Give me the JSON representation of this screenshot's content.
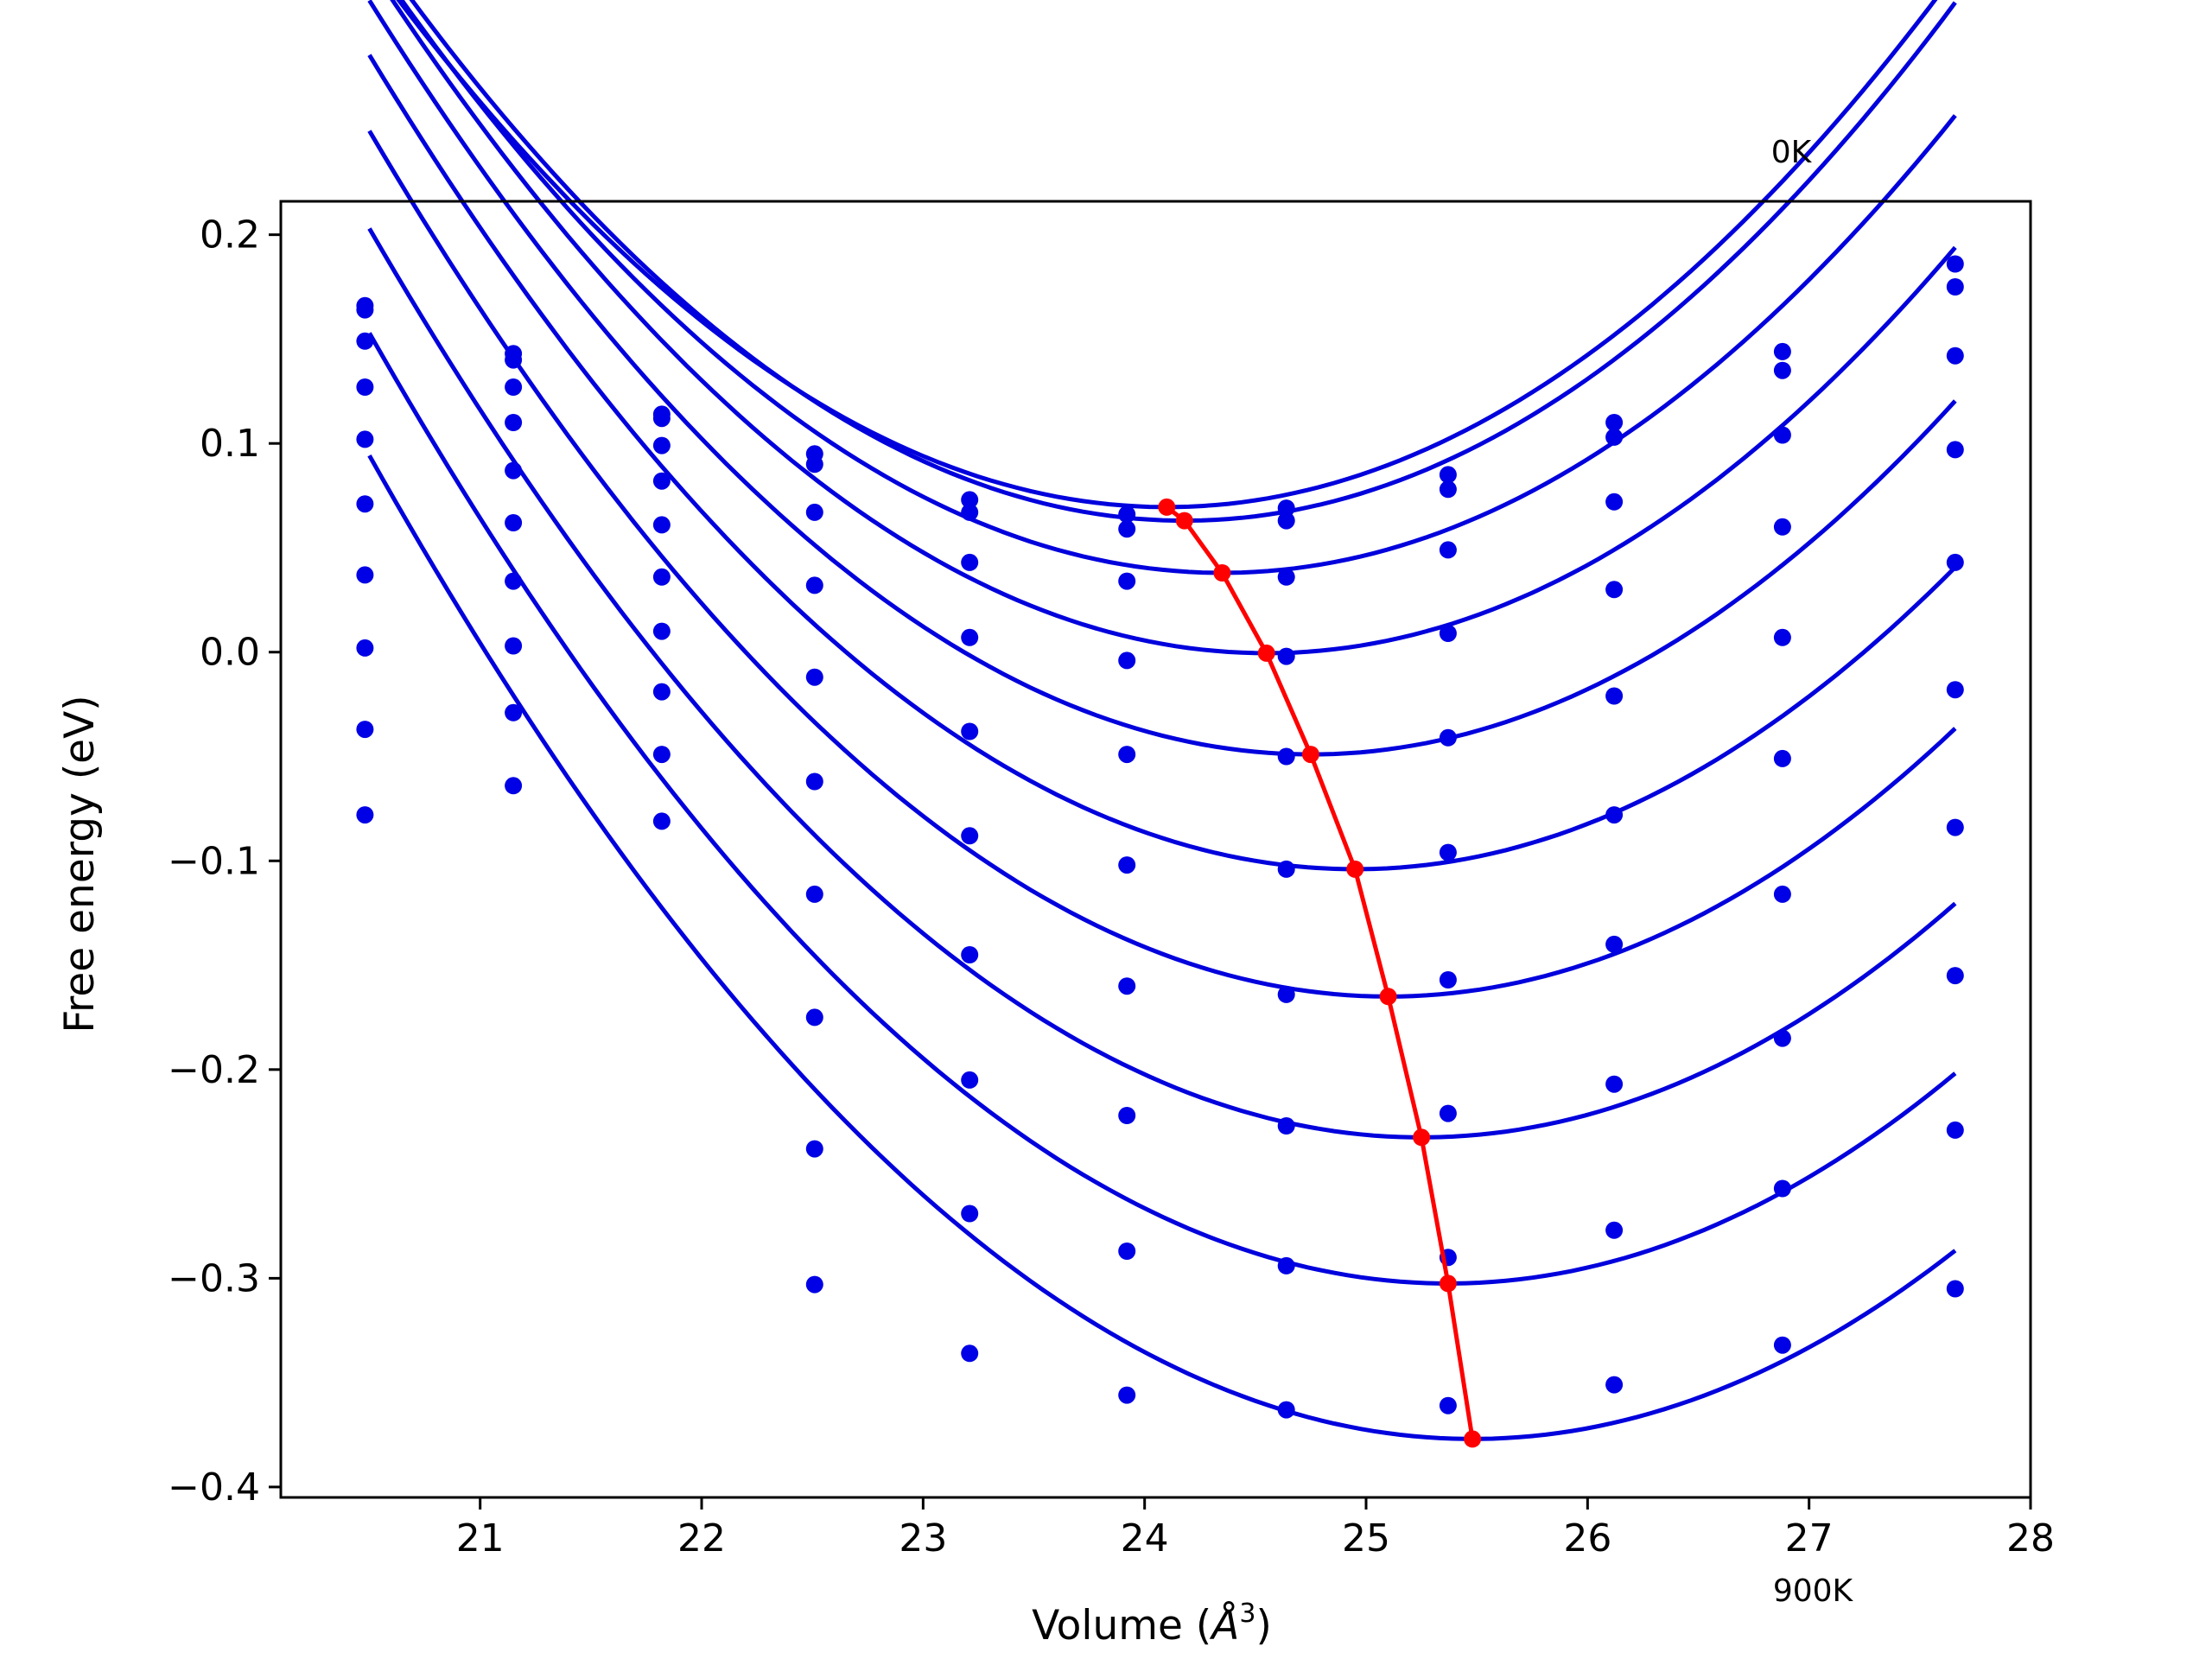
{
  "chart_data": {
    "type": "scatter",
    "xlabel_main": "Volume (",
    "xlabel_unit": "Å",
    "xlabel_exp": "3",
    "xlabel_close": ")",
    "ylabel": "Free energy (eV)",
    "xlim": [
      20.1,
      28.0
    ],
    "ylim": [
      -0.405,
      0.216
    ],
    "xticks": [
      21,
      22,
      23,
      24,
      25,
      26,
      27,
      28
    ],
    "yticks": [
      0.2,
      0.1,
      0.0,
      -0.1,
      -0.2,
      -0.3,
      -0.4
    ],
    "ytick_labels": [
      "0.2",
      "0.1",
      "0.0",
      "−0.1",
      "−0.2",
      "−0.3",
      "−0.4"
    ],
    "annotations": {
      "top": "0K",
      "bottom": "900K"
    },
    "colors": {
      "data": "#0000e6",
      "fit": "#0000dd",
      "min_path": "#ff0000",
      "axes": "#000000"
    },
    "volumes": [
      20.48,
      21.15,
      21.82,
      22.51,
      23.21,
      23.92,
      24.64,
      25.37,
      26.12,
      26.88,
      27.66
    ],
    "series": [
      {
        "points": [
          0.166,
          0.143,
          0.114,
          0.095,
          0.073,
          0.066,
          0.069,
          0.085,
          0.11,
          0.144,
          0.186
        ],
        "fit": {
          "v0": 24.1,
          "e0": 0.0695,
          "k": 0.0202,
          "x_start": 20.5,
          "x_end": 27.66
        }
      },
      {
        "points": [
          0.164,
          0.14,
          0.112,
          0.09,
          0.067,
          0.059,
          0.063,
          0.078,
          0.103,
          0.135,
          0.175
        ],
        "fit": {
          "v0": 24.18,
          "e0": 0.063,
          "k": 0.0205,
          "x_start": 20.5,
          "x_end": 27.66
        }
      },
      {
        "points": [
          0.149,
          0.127,
          0.099,
          0.067,
          0.043,
          0.034,
          0.036,
          0.049,
          0.072,
          0.104,
          0.142
        ],
        "fit": {
          "v0": 24.35,
          "e0": 0.038,
          "k": 0.02,
          "x_start": 20.5,
          "x_end": 27.66
        }
      },
      {
        "points": [
          0.127,
          0.11,
          0.082,
          0.032,
          0.007,
          -0.004,
          -0.002,
          0.009,
          0.03,
          0.06,
          0.097
        ],
        "fit": {
          "v0": 24.55,
          "e0": -0.0005,
          "k": 0.0201,
          "x_start": 20.5,
          "x_end": 27.66
        }
      },
      {
        "points": [
          0.102,
          0.087,
          0.061,
          -0.012,
          -0.038,
          -0.049,
          -0.05,
          -0.041,
          -0.021,
          0.007,
          0.043
        ],
        "fit": {
          "v0": 24.75,
          "e0": -0.049,
          "k": 0.02,
          "x_start": 20.5,
          "x_end": 27.66
        }
      },
      {
        "points": [
          0.071,
          0.062,
          0.036,
          -0.062,
          -0.088,
          -0.102,
          -0.104,
          -0.096,
          -0.078,
          -0.051,
          -0.018
        ],
        "fit": {
          "v0": 24.95,
          "e0": -0.104,
          "k": 0.0197,
          "x_start": 20.5,
          "x_end": 27.66
        }
      },
      {
        "points": [
          0.037,
          0.034,
          0.01,
          -0.116,
          -0.145,
          -0.16,
          -0.164,
          -0.157,
          -0.14,
          -0.116,
          -0.084
        ],
        "fit": {
          "v0": 25.1,
          "e0": -0.165,
          "k": 0.0196,
          "x_start": 20.5,
          "x_end": 27.66
        }
      },
      {
        "points": [
          0.002,
          0.003,
          -0.019,
          -0.175,
          -0.205,
          -0.222,
          -0.227,
          -0.221,
          -0.207,
          -0.185,
          -0.155
        ],
        "fit": {
          "v0": 25.25,
          "e0": -0.2325,
          "k": 0.0193,
          "x_start": 20.5,
          "x_end": 27.66
        }
      },
      {
        "points": [
          -0.037,
          -0.029,
          -0.049,
          -0.238,
          -0.269,
          -0.287,
          -0.294,
          -0.29,
          -0.277,
          -0.257,
          -0.229
        ],
        "fit": {
          "v0": 25.37,
          "e0": -0.3025,
          "k": 0.0192,
          "x_start": 20.5,
          "x_end": 27.66
        }
      },
      {
        "points": [
          -0.078,
          -0.064,
          -0.081,
          -0.303,
          -0.336,
          -0.356,
          -0.363,
          -0.361,
          -0.351,
          -0.332,
          -0.305
        ],
        "fit": {
          "v0": 25.48,
          "e0": -0.377,
          "k": 0.019,
          "x_start": 20.5,
          "x_end": 27.66
        }
      }
    ],
    "min_path": {
      "x": [
        24.1,
        24.18,
        24.35,
        24.55,
        24.75,
        24.95,
        25.1,
        25.25,
        25.37,
        25.48
      ],
      "y": [
        0.0695,
        0.063,
        0.038,
        -0.0005,
        -0.049,
        -0.104,
        -0.165,
        -0.2325,
        -0.3025,
        -0.377
      ]
    }
  }
}
